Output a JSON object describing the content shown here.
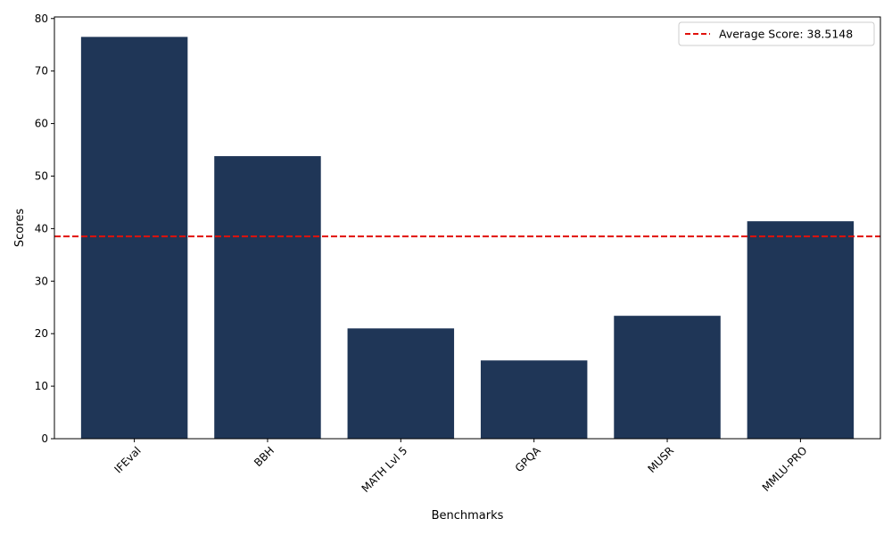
{
  "chart_data": {
    "type": "bar",
    "title": "",
    "xlabel": "Benchmarks",
    "ylabel": "Scores",
    "categories": [
      "IFEval",
      "BBH",
      "MATH Lvl 5",
      "GPQA",
      "MUSR",
      "MMLU-PRO"
    ],
    "values": [
      76.5,
      53.8,
      21.0,
      14.9,
      23.4,
      41.4
    ],
    "ylim": [
      0,
      80.3
    ],
    "yticks": [
      0,
      10,
      20,
      30,
      40,
      50,
      60,
      70,
      80
    ],
    "bar_color": "#1f3657",
    "grid": false,
    "reference_line": {
      "value": 38.5148,
      "color": "#e0110b",
      "style": "dashed",
      "label": "Average Score: 38.5148"
    },
    "legend": {
      "placement": "top-right",
      "entries": [
        "Average Score: 38.5148"
      ]
    },
    "x_tick_rotation": 45
  }
}
